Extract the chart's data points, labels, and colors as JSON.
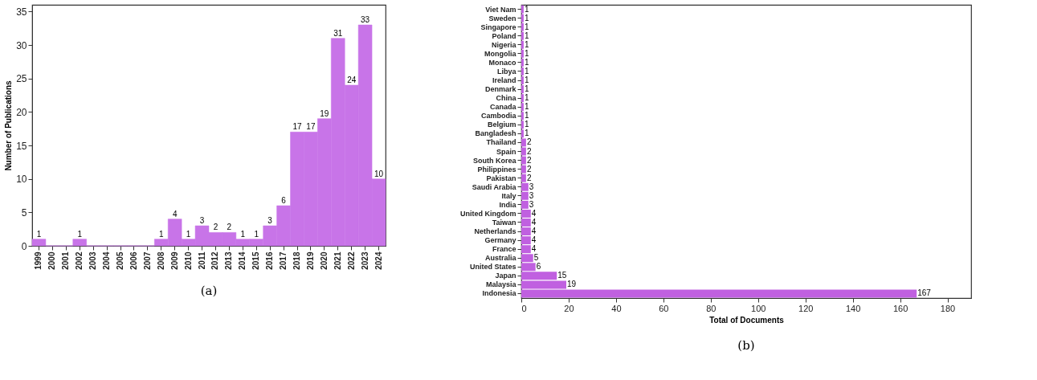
{
  "chart_data": [
    {
      "type": "bar",
      "ylabel": "Number of Publications",
      "annotations": [
        "(a)"
      ],
      "color": "#c874e8",
      "categories": [
        "1999",
        "2000",
        "2001",
        "2002",
        "2003",
        "2004",
        "2005",
        "2006",
        "2007",
        "2008",
        "2009",
        "2010",
        "2011",
        "2012",
        "2013",
        "2014",
        "2015",
        "2016",
        "2017",
        "2018",
        "2019",
        "2020",
        "2021",
        "2022",
        "2023",
        "2024"
      ],
      "values": [
        1,
        0,
        0,
        1,
        0,
        0,
        0,
        0,
        0,
        1,
        4,
        1,
        3,
        2,
        2,
        1,
        1,
        3,
        6,
        17,
        17,
        19,
        31,
        24,
        33,
        10
      ],
      "value_labels": [
        "1",
        null,
        null,
        "1",
        null,
        null,
        null,
        null,
        null,
        "1",
        "4",
        "1",
        "3",
        "2",
        "2",
        "1",
        "1",
        "3",
        "6",
        "17",
        "17",
        "19",
        "31",
        "24",
        "33",
        "10"
      ],
      "ylim": [
        0,
        36
      ],
      "yticks": [
        0,
        5,
        10,
        15,
        20,
        25,
        30,
        35
      ],
      "grid": false
    },
    {
      "type": "bar",
      "orientation": "horizontal",
      "xlabel": "Total of Documents",
      "annotations": [
        "(b)"
      ],
      "color": "#c060e0",
      "categories": [
        "Viet Nam",
        "Sweden",
        "Singapore",
        "Poland",
        "Nigeria",
        "Mongolia",
        "Monaco",
        "Libya",
        "Ireland",
        "Denmark",
        "China",
        "Canada",
        "Cambodia",
        "Belgium",
        "Bangladesh",
        "Thailand",
        "Spain",
        "South Korea",
        "Philippines",
        "Pakistan",
        "Saudi Arabia",
        "Italy",
        "India",
        "United Kingdom",
        "Taiwan",
        "Netherlands",
        "Germany",
        "France",
        "Australia",
        "United States",
        "Japan",
        "Malaysia",
        "Indonesia"
      ],
      "values": [
        1,
        1,
        1,
        1,
        1,
        1,
        1,
        1,
        1,
        1,
        1,
        1,
        1,
        1,
        1,
        2,
        2,
        2,
        2,
        2,
        3,
        3,
        3,
        4,
        4,
        4,
        4,
        4,
        5,
        6,
        15,
        19,
        167
      ],
      "data_labels": true,
      "xlim": [
        0,
        190
      ],
      "xticks": [
        0,
        20,
        40,
        60,
        80,
        100,
        120,
        140,
        160,
        180
      ],
      "grid": false
    }
  ]
}
